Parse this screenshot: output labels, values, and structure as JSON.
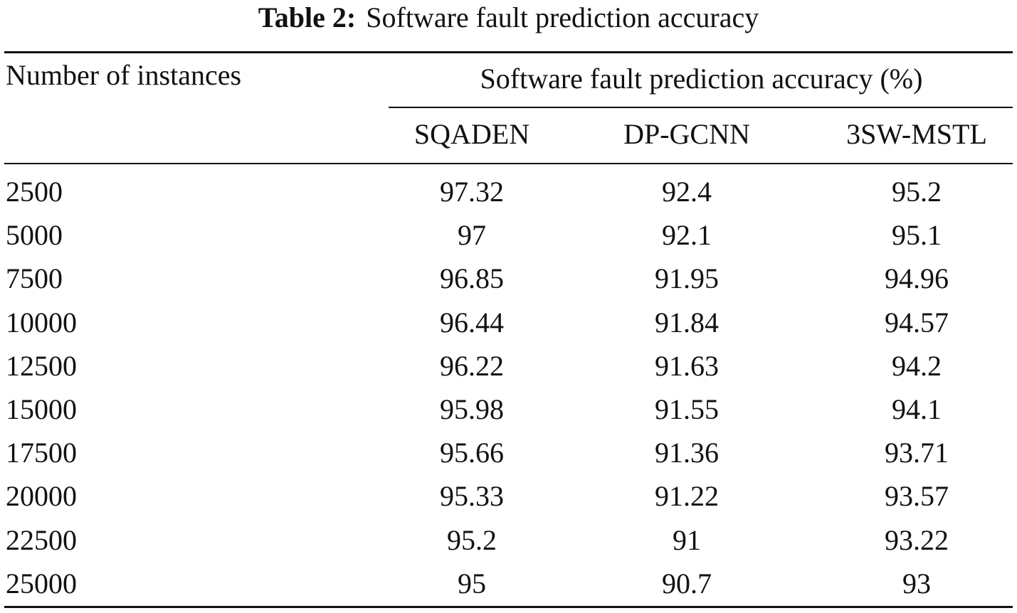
{
  "caption": {
    "label": "Table 2:",
    "text": "Software fault prediction accuracy"
  },
  "table": {
    "row_header": "Number of instances",
    "group_header": "Software fault prediction accuracy (%)",
    "columns": [
      "SQADEN",
      "DP-GCNN",
      "3SW-MSTL"
    ],
    "rows": [
      {
        "instances": "2500",
        "values": [
          "97.32",
          "92.4",
          "95.2"
        ]
      },
      {
        "instances": "5000",
        "values": [
          "97",
          "92.1",
          "95.1"
        ]
      },
      {
        "instances": "7500",
        "values": [
          "96.85",
          "91.95",
          "94.96"
        ]
      },
      {
        "instances": "10000",
        "values": [
          "96.44",
          "91.84",
          "94.57"
        ]
      },
      {
        "instances": "12500",
        "values": [
          "96.22",
          "91.63",
          "94.2"
        ]
      },
      {
        "instances": "15000",
        "values": [
          "95.98",
          "91.55",
          "94.1"
        ]
      },
      {
        "instances": "17500",
        "values": [
          "95.66",
          "91.36",
          "93.71"
        ]
      },
      {
        "instances": "20000",
        "values": [
          "95.33",
          "91.22",
          "93.57"
        ]
      },
      {
        "instances": "22500",
        "values": [
          "95.2",
          "91",
          "93.22"
        ]
      },
      {
        "instances": "25000",
        "values": [
          "95",
          "90.7",
          "93"
        ]
      }
    ]
  }
}
